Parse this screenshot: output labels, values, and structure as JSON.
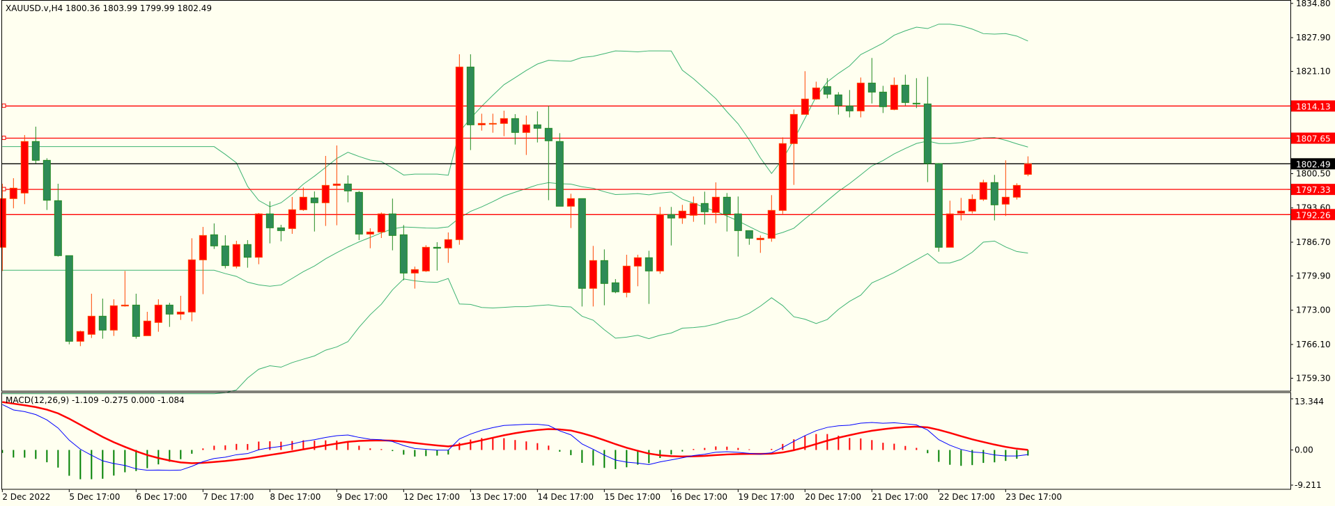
{
  "chart_data": {
    "type": "candlestick",
    "title": "XAUUSD.v,H4  1800.36 1803.99 1799.99 1802.49",
    "symbol": "XAUUSD.v",
    "timeframe": "H4",
    "ohlc_header": "1800.36 1803.99 1799.99 1802.49",
    "ylim": [
      1756.0,
      1835.5
    ],
    "colors": {
      "up": "#ff0000",
      "up_border": "#ff4500",
      "down": "#2e8b57",
      "down_border": "#228b22",
      "bands": "#3cb371",
      "background": "#fffff0",
      "macd": "#0000ff",
      "signal": "#ff0000",
      "hist_up": "#ff0000",
      "hist_down": "#008000"
    },
    "candles": [
      [
        1785.67,
        1798.47,
        1780.9,
        1795.48
      ],
      [
        1795.48,
        1799.59,
        1793.52,
        1797.58
      ],
      [
        1796.6,
        1808.28,
        1794.36,
        1806.98
      ],
      [
        1806.98,
        1809.97,
        1802.54,
        1803.19
      ],
      [
        1803.19,
        1803.61,
        1793.19,
        1795.15
      ],
      [
        1795.06,
        1798.47,
        1783.8,
        1783.99
      ],
      [
        1783.99,
        1783.99,
        1766.13,
        1766.74
      ],
      [
        1766.74,
        1768.89,
        1765.76,
        1768.71
      ],
      [
        1768.14,
        1776.32,
        1767.4,
        1771.79
      ],
      [
        1771.79,
        1775.34,
        1767.26,
        1768.99
      ],
      [
        1768.99,
        1775.2,
        1767.82,
        1773.89
      ],
      [
        1773.85,
        1780.9,
        1773.71,
        1774.03
      ],
      [
        1774.03,
        1776.32,
        1767.26,
        1767.72
      ],
      [
        1767.86,
        1772.68,
        1767.86,
        1770.81
      ],
      [
        1770.53,
        1775.2,
        1768.66,
        1774.03
      ],
      [
        1774.03,
        1774.5,
        1769.64,
        1772.21
      ],
      [
        1772.21,
        1775.9,
        1771.04,
        1772.63
      ],
      [
        1772.63,
        1787.49,
        1770.76,
        1783.14
      ],
      [
        1783.14,
        1789.78,
        1776.23,
        1788.05
      ],
      [
        1788.19,
        1790.48,
        1785.34,
        1785.95
      ],
      [
        1785.95,
        1788.1,
        1781.42,
        1781.98
      ],
      [
        1781.84,
        1786.98,
        1781.42,
        1786.23
      ],
      [
        1786.23,
        1787.12,
        1781.56,
        1783.66
      ],
      [
        1783.66,
        1792.58,
        1782.26,
        1792.4
      ],
      [
        1792.4,
        1794.92,
        1786.46,
        1789.59
      ],
      [
        1789.59,
        1790.2,
        1786.88,
        1789.03
      ],
      [
        1789.45,
        1795.81,
        1788.38,
        1793.24
      ],
      [
        1793.24,
        1797.72,
        1793.0,
        1795.76
      ],
      [
        1795.62,
        1796.93,
        1788.85,
        1794.64
      ],
      [
        1794.64,
        1804.08,
        1789.97,
        1798.14
      ],
      [
        1798.14,
        1806.18,
        1790.11,
        1798.42
      ],
      [
        1798.42,
        1800.15,
        1794.73,
        1797.02
      ],
      [
        1796.74,
        1797.02,
        1787.12,
        1788.33
      ],
      [
        1788.33,
        1789.5,
        1785.48,
        1788.75
      ],
      [
        1788.75,
        1792.68,
        1787.54,
        1792.4
      ],
      [
        1792.4,
        1795.48,
        1785.06,
        1788.05
      ],
      [
        1788.19,
        1790.15,
        1779.03,
        1780.48
      ],
      [
        1780.48,
        1781.79,
        1777.35,
        1781.18
      ],
      [
        1780.9,
        1786.09,
        1780.71,
        1785.67
      ],
      [
        1785.67,
        1786.7,
        1780.99,
        1785.48
      ],
      [
        1785.53,
        1788.66,
        1782.54,
        1787.21
      ],
      [
        1787.21,
        1824.55,
        1786.18,
        1821.98
      ],
      [
        1821.98,
        1824.55,
        1805.25,
        1810.34
      ],
      [
        1810.34,
        1812.58,
        1809.17,
        1810.62
      ],
      [
        1810.57,
        1812.58,
        1808.75,
        1810.62
      ],
      [
        1810.62,
        1813.19,
        1808.05,
        1811.6
      ],
      [
        1811.6,
        1812.49,
        1806.37,
        1808.8
      ],
      [
        1808.8,
        1812.21,
        1804.27,
        1810.34
      ],
      [
        1810.34,
        1813.05,
        1806.79,
        1809.64
      ],
      [
        1809.64,
        1814.13,
        1795.15,
        1807.12
      ],
      [
        1806.98,
        1808.66,
        1793.94,
        1793.94
      ],
      [
        1793.94,
        1796.46,
        1789.55,
        1795.48
      ],
      [
        1795.48,
        1795.48,
        1773.75,
        1777.4
      ],
      [
        1777.4,
        1785.95,
        1773.75,
        1783.0
      ],
      [
        1783.0,
        1785.25,
        1773.99,
        1778.38
      ],
      [
        1778.52,
        1779.27,
        1776.42,
        1776.7
      ],
      [
        1776.56,
        1784.17,
        1775.58,
        1781.88
      ],
      [
        1781.88,
        1784.17,
        1777.82,
        1783.57
      ],
      [
        1783.57,
        1784.97,
        1774.27,
        1780.9
      ],
      [
        1780.9,
        1793.8,
        1780.34,
        1792.26
      ],
      [
        1792.26,
        1793.8,
        1786.04,
        1791.56
      ],
      [
        1791.56,
        1794.22,
        1790.39,
        1792.96
      ],
      [
        1792.12,
        1795.9,
        1790.81,
        1794.5
      ],
      [
        1794.5,
        1796.88,
        1790.25,
        1792.82
      ],
      [
        1792.68,
        1798.75,
        1790.53,
        1795.76
      ],
      [
        1795.76,
        1796.6,
        1788.85,
        1792.4
      ],
      [
        1792.4,
        1795.9,
        1783.8,
        1789.03
      ],
      [
        1789.03,
        1789.03,
        1786.18,
        1787.49
      ],
      [
        1787.21,
        1788.05,
        1784.55,
        1787.49
      ],
      [
        1787.49,
        1796.18,
        1786.79,
        1793.1
      ],
      [
        1793.1,
        1807.82,
        1792.4,
        1806.56
      ],
      [
        1806.56,
        1813.43,
        1798.24,
        1812.44
      ],
      [
        1812.44,
        1821.14,
        1812.44,
        1815.53
      ],
      [
        1815.53,
        1819.03,
        1815.39,
        1817.77
      ],
      [
        1818.05,
        1819.73,
        1815.67,
        1816.51
      ],
      [
        1816.37,
        1816.93,
        1812.4,
        1814.22
      ],
      [
        1814.13,
        1817.35,
        1811.84,
        1813.14
      ],
      [
        1813.14,
        1819.87,
        1811.84,
        1818.75
      ],
      [
        1818.75,
        1823.8,
        1814.64,
        1816.93
      ],
      [
        1816.93,
        1818.19,
        1812.72,
        1813.99
      ],
      [
        1813.43,
        1819.87,
        1813.28,
        1818.33
      ],
      [
        1818.33,
        1820.43,
        1814.22,
        1814.83
      ],
      [
        1814.69,
        1819.73,
        1813.71,
        1814.55
      ],
      [
        1814.55,
        1820.01,
        1798.8,
        1802.54
      ],
      [
        1802.54,
        1802.63,
        1784.78,
        1785.67
      ],
      [
        1785.67,
        1795.06,
        1785.67,
        1792.4
      ],
      [
        1792.54,
        1795.62,
        1791.09,
        1792.96
      ],
      [
        1792.96,
        1796.32,
        1792.49,
        1795.34
      ],
      [
        1795.34,
        1799.27,
        1795.01,
        1798.71
      ],
      [
        1798.71,
        1800.25,
        1791.09,
        1794.22
      ],
      [
        1794.36,
        1803.19,
        1791.98,
        1795.76
      ],
      [
        1795.76,
        1798.57,
        1795.29,
        1798.14
      ],
      [
        1800.36,
        1803.99,
        1799.99,
        1802.49
      ]
    ],
    "x_tick_labels": [
      "2 Dec 2022",
      "5 Dec 17:00",
      "6 Dec 17:00",
      "7 Dec 17:00",
      "8 Dec 17:00",
      "9 Dec 17:00",
      "12 Dec 17:00",
      "13 Dec 17:00",
      "14 Dec 17:00",
      "15 Dec 17:00",
      "16 Dec 17:00",
      "19 Dec 17:00",
      "20 Dec 17:00",
      "21 Dec 17:00",
      "22 Dec 17:00",
      "23 Dec 17:00"
    ],
    "x_tick_every_bars": 6,
    "y_tick_labels": [
      "1834.80",
      "1827.90",
      "1821.10",
      "1800.50",
      "1793.60",
      "1786.70",
      "1779.90",
      "1773.00",
      "1766.10",
      "1759.30"
    ],
    "horizontal_lines": [
      {
        "price": 1814.13,
        "label": "1814.13",
        "color": "#ff0000"
      },
      {
        "price": 1807.65,
        "label": "1807.65",
        "color": "#ff0000"
      },
      {
        "price": 1797.33,
        "label": "1797.33",
        "color": "#ff0000"
      },
      {
        "price": 1792.26,
        "label": "1792.26",
        "color": "#ff0000"
      }
    ],
    "current_price": {
      "price": 1802.49,
      "label": "1802.49",
      "color": "#000000"
    },
    "bollinger": {
      "period": 20,
      "deviation": 2
    },
    "macd": {
      "label": "MACD(12,26,9) -1.109 -0.275 0.000 -1.084",
      "fast": 12,
      "slow": 26,
      "signal": 9,
      "ylim": [
        -9.211,
        13.344
      ],
      "y_tick_labels": [
        "13.344",
        "0.00",
        "-9.211"
      ]
    }
  }
}
